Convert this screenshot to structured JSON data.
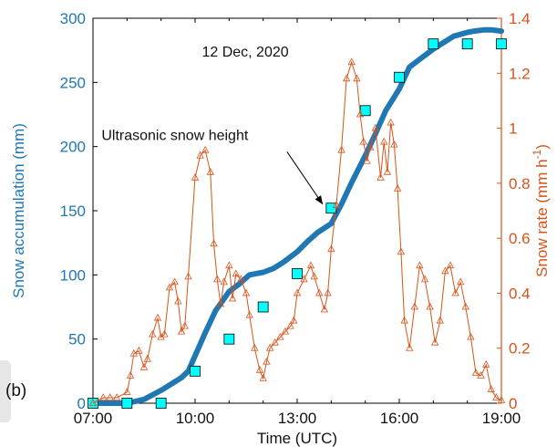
{
  "panel_label": "(b)",
  "chart_data": {
    "type": "line",
    "date_annotation": "12 Dec, 2020",
    "arrow_annotation": "Ultrasonic snow height",
    "xlabel": "Time (UTC)",
    "xlim": [
      7,
      19
    ],
    "xticks": [
      7,
      10,
      13,
      16,
      19
    ],
    "xtick_labels": [
      "07:00",
      "10:00",
      "13:00",
      "16:00",
      "19:00"
    ],
    "y_left": {
      "label": "Snow accumulation (mm)",
      "lim": [
        0,
        300
      ],
      "ticks": [
        0,
        50,
        100,
        150,
        200,
        250,
        300
      ],
      "color": "#1f77b4"
    },
    "y_right": {
      "label_main": "Snow rate (mm h",
      "label_sup": "-1",
      "label_end": ")",
      "lim": [
        0,
        1.4
      ],
      "ticks": [
        0,
        0.2,
        0.4,
        0.6,
        0.8,
        1,
        1.2,
        1.4
      ],
      "color": "#d95319"
    },
    "grid": false,
    "series": [
      {
        "axis": "left",
        "color": "#1f77b4",
        "x": [
          7.0,
          7.5,
          8.0,
          8.5,
          9.0,
          9.3,
          9.6,
          9.8,
          10.0,
          10.3,
          10.6,
          11.0,
          11.3,
          11.6,
          12.0,
          12.3,
          12.6,
          13.0,
          13.3,
          13.6,
          14.0,
          14.3,
          14.6,
          15.0,
          15.3,
          15.6,
          16.0,
          16.3,
          16.6,
          17.0,
          17.3,
          17.6,
          18.0,
          18.2,
          18.5,
          18.7,
          19.0
        ],
        "values": [
          0,
          0,
          0,
          3,
          10,
          15,
          20,
          25,
          37,
          55,
          72,
          87,
          93,
          100,
          102,
          105,
          110,
          118,
          126,
          133,
          140,
          155,
          172,
          193,
          210,
          228,
          245,
          262,
          268,
          276,
          281,
          286,
          289,
          290,
          291,
          291,
          290
        ]
      },
      {
        "axis": "left",
        "color": "#00ffff",
        "marker": "square",
        "x": [
          7,
          8,
          9,
          10,
          11,
          12,
          13,
          14,
          15,
          16,
          17,
          18,
          19
        ],
        "values": [
          0,
          0,
          0,
          25,
          50,
          75,
          101,
          152,
          228,
          254,
          280,
          280,
          280
        ]
      },
      {
        "axis": "right",
        "color": "#d95319",
        "marker": "triangle",
        "x": [
          7.0,
          7.3,
          7.5,
          7.7,
          8.0,
          8.1,
          8.2,
          8.35,
          8.5,
          8.6,
          8.75,
          8.9,
          9.0,
          9.1,
          9.25,
          9.4,
          9.5,
          9.6,
          9.7,
          9.8,
          10.0,
          10.15,
          10.3,
          10.45,
          10.55,
          10.65,
          10.75,
          10.85,
          11.0,
          11.1,
          11.2,
          11.35,
          11.5,
          11.6,
          11.75,
          11.9,
          12.0,
          12.1,
          12.2,
          12.35,
          12.5,
          12.65,
          12.8,
          12.9,
          13.0,
          13.2,
          13.4,
          13.5,
          13.65,
          13.8,
          13.9,
          14.0,
          14.15,
          14.3,
          14.45,
          14.6,
          14.75,
          14.85,
          14.95,
          15.05,
          15.15,
          15.3,
          15.45,
          15.55,
          15.65,
          15.75,
          15.85,
          15.95,
          16.05,
          16.15,
          16.3,
          16.45,
          16.6,
          16.75,
          16.9,
          17.05,
          17.2,
          17.35,
          17.5,
          17.65,
          17.8,
          17.95,
          18.1,
          18.25,
          18.4,
          18.55,
          18.7,
          18.85,
          19.0
        ],
        "values": [
          0,
          0.02,
          0.02,
          0.02,
          0.04,
          0.1,
          0.18,
          0.19,
          0.13,
          0.16,
          0.25,
          0.31,
          0.24,
          0.25,
          0.42,
          0.44,
          0.37,
          0.26,
          0.28,
          0.46,
          0.82,
          0.9,
          0.92,
          0.84,
          0.58,
          0.45,
          0.36,
          0.44,
          0.5,
          0.38,
          0.47,
          0.45,
          0.4,
          0.32,
          0.2,
          0.12,
          0.09,
          0.15,
          0.2,
          0.22,
          0.24,
          0.26,
          0.28,
          0.3,
          0.4,
          0.45,
          0.5,
          0.46,
          0.4,
          0.34,
          0.4,
          0.56,
          0.72,
          0.92,
          1.18,
          1.24,
          1.18,
          1.05,
          0.95,
          0.88,
          0.93,
          1.0,
          0.82,
          0.95,
          0.84,
          1.02,
          0.94,
          0.78,
          0.55,
          0.3,
          0.2,
          0.35,
          0.5,
          0.45,
          0.35,
          0.22,
          0.3,
          0.48,
          0.5,
          0.4,
          0.44,
          0.35,
          0.24,
          0.11,
          0.1,
          0.14,
          0.05,
          0.02,
          0.01
        ]
      }
    ]
  }
}
